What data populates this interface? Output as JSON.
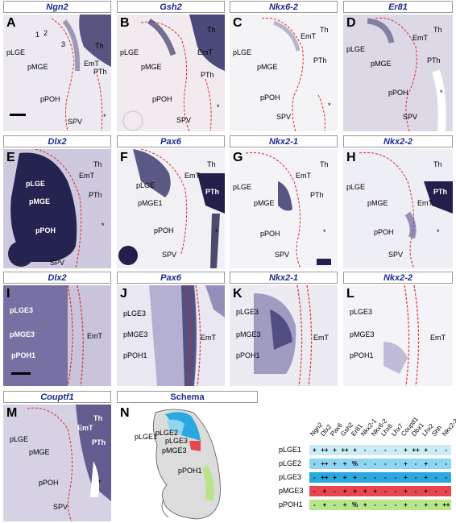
{
  "row1": {
    "titles": [
      "Ngn2",
      "Gsh2",
      "Nkx6-2",
      "Er81"
    ],
    "letters": [
      "A",
      "B",
      "C",
      "D"
    ]
  },
  "row2": {
    "titles": [
      "Dlx2",
      "Pax6",
      "Nkx2-1",
      "Nkx2-2"
    ],
    "letters": [
      "E",
      "F",
      "G",
      "H"
    ]
  },
  "row3": {
    "titles": [
      "Dlx2",
      "Pax6",
      "Nkx2-1",
      "Nkx2-2"
    ],
    "letters": [
      "I",
      "J",
      "K",
      "L"
    ]
  },
  "row4": {
    "title_m": "Couptf1",
    "title_schema": "Schema",
    "letter_m": "M",
    "letter_n": "N"
  },
  "labels": {
    "pLGE": "pLGE",
    "pMGE": "pMGE",
    "pPOH": "pPOH",
    "SPV": "SPV",
    "Th": "Th",
    "PTh": "PTh",
    "EmT": "EmT",
    "star": "*",
    "n1": "1",
    "n2": "2",
    "n3": "3",
    "pLGE3": "pLGE3",
    "pMGE3": "pMGE3",
    "pPOH1": "pPOH1",
    "pMGE1": "pMGE1",
    "pLGE1": "pLGE1",
    "pLGE2": "pLGE2"
  },
  "table": {
    "genes": [
      "Ngn2",
      "Dlx2",
      "Pax6",
      "Gsh2",
      "Er81",
      "Nkx2-1",
      "Nkx6-2",
      "Lhx6",
      "Lhx7",
      "Couptf1",
      "Dbx1",
      "Lhx2",
      "Shh",
      "Nkx2-2"
    ],
    "rows": [
      {
        "name": "pLGE1",
        "color": "#c9ecf7",
        "cells": [
          "+",
          "++",
          "+",
          "++",
          "+",
          "-",
          "-",
          "-",
          "-",
          "+",
          "++",
          "+",
          "-",
          "-"
        ]
      },
      {
        "name": "pLGE2",
        "color": "#8fd6f1",
        "cells": [
          "-",
          "++",
          "+",
          "+",
          "%",
          "-",
          "-",
          "-",
          "-",
          "+",
          "-",
          "+",
          "-",
          "-"
        ]
      },
      {
        "name": "pLGE3",
        "color": "#2aa8df",
        "cells": [
          "-",
          "++",
          "+",
          "+",
          "+",
          "-",
          "-",
          "-",
          "-",
          "+",
          "-",
          "+",
          "-",
          "-"
        ]
      },
      {
        "name": "pMGE3",
        "color": "#e8464e",
        "cells": [
          "-",
          "+",
          "-",
          "+",
          "+",
          "+",
          "+",
          "-",
          "-",
          "+",
          "-",
          "+",
          "-",
          "-"
        ]
      },
      {
        "name": "pPOH1",
        "color": "#b7e58a",
        "cells": [
          "-",
          "+",
          "-",
          "+",
          "%",
          "+",
          "-",
          "-",
          "-",
          "+",
          "-",
          "+",
          "+",
          "++"
        ]
      }
    ]
  },
  "colors": {
    "title_text": "#1c2a8f",
    "stain": "#2a2a6a",
    "outline_red": "#e0262a",
    "outline_dot": "#111111"
  }
}
